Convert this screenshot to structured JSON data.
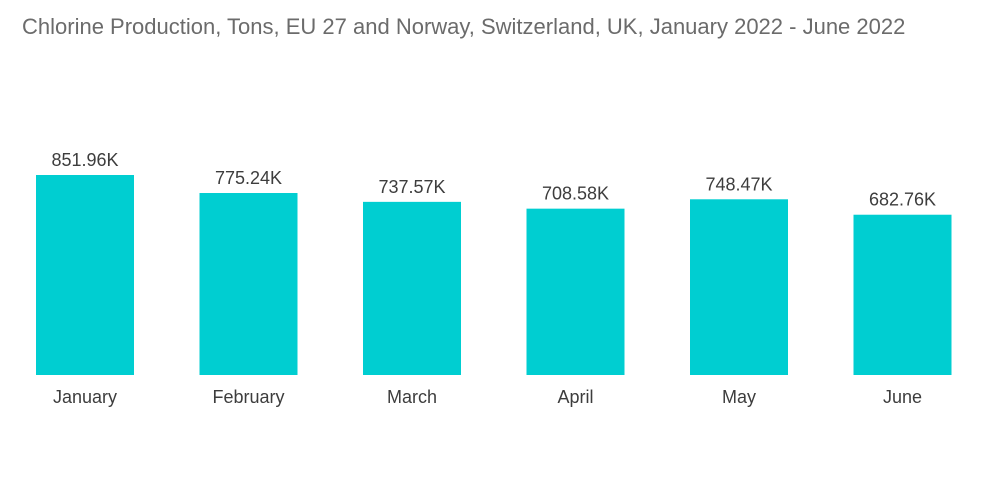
{
  "chart_data": {
    "type": "bar",
    "title": "Chlorine Production, Tons, EU 27 and Norway, Switzerland, UK, January 2022 - June 2022",
    "categories": [
      "January",
      "February",
      "March",
      "April",
      "May",
      "June"
    ],
    "values": [
      851.96,
      775.24,
      737.57,
      708.58,
      748.47,
      682.76
    ],
    "data_labels": [
      "851.96K",
      "775.24K",
      "737.57K",
      "708.58K",
      "748.47K",
      "682.76K"
    ],
    "xlabel": "",
    "ylabel": "",
    "ylim": [
      0,
      851.96
    ],
    "grid": false,
    "legend": "none",
    "bar_color": "#00ced1"
  }
}
